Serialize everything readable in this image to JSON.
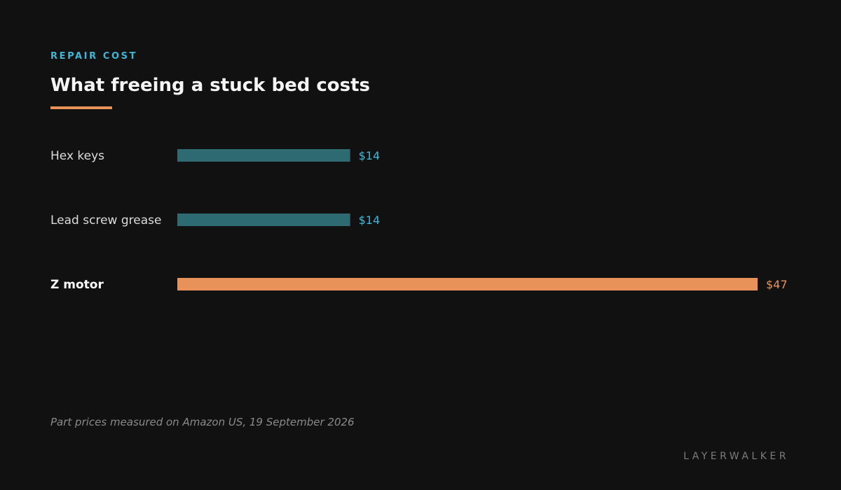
{
  "header": {
    "kicker": "REPAIR COST",
    "title": "What freeing a stuck bed costs"
  },
  "footnote": "Part prices measured on Amazon US, 19 September 2026",
  "brand": "LAYERWALKER",
  "colors": {
    "accent": "#e8925a",
    "bar_default": "#2e6a72",
    "value_default": "#3fb6d6",
    "highlight_label": "#ffffff",
    "label_default": "#dcdcdc"
  },
  "chart_data": {
    "type": "bar",
    "orientation": "horizontal",
    "categories": [
      "Hex keys",
      "Lead screw grease",
      "Z motor"
    ],
    "values": [
      14,
      14,
      47
    ],
    "value_labels": [
      "$14",
      "$14",
      "$47"
    ],
    "highlighted": "Z motor",
    "unit": "$",
    "title": "What freeing a stuck bed costs",
    "xlabel": "",
    "ylabel": "",
    "xlim": [
      0,
      47
    ],
    "grid": false,
    "legend": "none"
  }
}
